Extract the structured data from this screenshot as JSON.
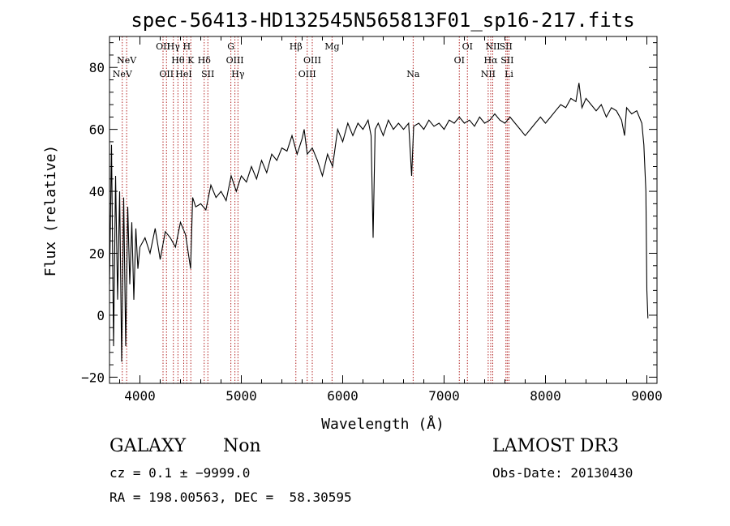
{
  "chart_data": {
    "type": "line",
    "title": "spec-56413-HD132545N565813F01_sp16-217.fits",
    "xlabel": "Wavelength (Å)",
    "ylabel": "Flux (relative)",
    "xlim": [
      3700,
      9100
    ],
    "ylim": [
      -22,
      90
    ],
    "x_ticks": [
      4000,
      5000,
      6000,
      7000,
      8000,
      9000
    ],
    "y_ticks": [
      -20,
      0,
      20,
      40,
      60,
      80
    ],
    "x_tick_labels": [
      "4000",
      "5000",
      "6000",
      "7000",
      "8000",
      "9000"
    ],
    "y_tick_labels": [
      "−20",
      "0",
      "20",
      "40",
      "60",
      "80"
    ],
    "grid": false,
    "series": [
      {
        "color": "#000000",
        "x": [
          3700,
          3720,
          3740,
          3760,
          3780,
          3800,
          3820,
          3840,
          3860,
          3880,
          3900,
          3920,
          3940,
          3960,
          3980,
          4000,
          4050,
          4100,
          4150,
          4200,
          4250,
          4300,
          4350,
          4400,
          4450,
          4500,
          4520,
          4550,
          4600,
          4650,
          4700,
          4750,
          4800,
          4850,
          4900,
          4950,
          5000,
          5050,
          5100,
          5150,
          5200,
          5250,
          5300,
          5350,
          5400,
          5450,
          5500,
          5550,
          5600,
          5620,
          5650,
          5700,
          5750,
          5800,
          5850,
          5900,
          5950,
          6000,
          6050,
          6100,
          6150,
          6200,
          6250,
          6280,
          6300,
          6320,
          6350,
          6400,
          6450,
          6500,
          6550,
          6600,
          6650,
          6680,
          6700,
          6750,
          6800,
          6850,
          6900,
          6950,
          7000,
          7050,
          7100,
          7150,
          7200,
          7250,
          7300,
          7350,
          7400,
          7450,
          7500,
          7550,
          7600,
          7650,
          7700,
          7750,
          7800,
          7850,
          7900,
          7950,
          8000,
          8050,
          8100,
          8150,
          8200,
          8250,
          8300,
          8330,
          8360,
          8400,
          8450,
          8500,
          8550,
          8600,
          8650,
          8700,
          8750,
          8780,
          8800,
          8850,
          8900,
          8950,
          8970,
          8990,
          9000,
          9010
        ],
        "y": [
          10,
          55,
          -10,
          45,
          5,
          40,
          -15,
          38,
          -10,
          35,
          10,
          30,
          5,
          28,
          15,
          22,
          25,
          20,
          28,
          18,
          27,
          25,
          22,
          30,
          26,
          15,
          38,
          35,
          36,
          34,
          42,
          38,
          40,
          37,
          45,
          40,
          45,
          43,
          48,
          44,
          50,
          46,
          52,
          50,
          54,
          53,
          58,
          52,
          57,
          60,
          52,
          54,
          50,
          45,
          52,
          48,
          60,
          56,
          62,
          58,
          62,
          60,
          63,
          58,
          25,
          60,
          62,
          58,
          63,
          60,
          62,
          60,
          62,
          45,
          61,
          62,
          60,
          63,
          61,
          62,
          60,
          63,
          62,
          64,
          62,
          63,
          61,
          64,
          62,
          63,
          65,
          63,
          62,
          64,
          62,
          60,
          58,
          60,
          62,
          64,
          62,
          64,
          66,
          68,
          67,
          70,
          69,
          75,
          67,
          70,
          68,
          66,
          68,
          64,
          67,
          66,
          63,
          58,
          67,
          65,
          66,
          62,
          55,
          40,
          8,
          -1
        ]
      }
    ],
    "line_markers": [
      {
        "x": 3826,
        "label": "NeV",
        "row": 3
      },
      {
        "x": 3869,
        "label": "NeV",
        "row": 2
      },
      {
        "x": 4228,
        "label": "OII",
        "row": 1
      },
      {
        "x": 4262,
        "label": "OII",
        "row": 3
      },
      {
        "x": 4330,
        "label": "Hγ",
        "row": 1
      },
      {
        "x": 4375,
        "label": "Hθ",
        "row": 2
      },
      {
        "x": 4432,
        "label": "HeI",
        "row": 3
      },
      {
        "x": 4462,
        "label": "H",
        "row": 1
      },
      {
        "x": 4502,
        "label": "K",
        "row": 2
      },
      {
        "x": 4634,
        "label": "Hδ",
        "row": 2
      },
      {
        "x": 4670,
        "label": "SII",
        "row": 3
      },
      {
        "x": 4897,
        "label": "G",
        "row": 1
      },
      {
        "x": 4937,
        "label": "OIII",
        "row": 2
      },
      {
        "x": 4967,
        "label": "Hγ",
        "row": 3
      },
      {
        "x": 5538,
        "label": "Hβ",
        "row": 1
      },
      {
        "x": 5650,
        "label": "OIII",
        "row": 3
      },
      {
        "x": 5700,
        "label": "OIII",
        "row": 2
      },
      {
        "x": 5895,
        "label": "Mg",
        "row": 1
      },
      {
        "x": 6695,
        "label": "Na",
        "row": 3
      },
      {
        "x": 7150,
        "label": "OI",
        "row": 2
      },
      {
        "x": 7230,
        "label": "OI",
        "row": 1
      },
      {
        "x": 7435,
        "label": "NII",
        "row": 3
      },
      {
        "x": 7460,
        "label": "Hα",
        "row": 2
      },
      {
        "x": 7480,
        "label": "NII",
        "row": 1
      },
      {
        "x": 7610,
        "label": "SII",
        "row": 1
      },
      {
        "x": 7623,
        "label": "SII",
        "row": 2
      },
      {
        "x": 7640,
        "label": "Li",
        "row": 3
      }
    ],
    "marker_color": "#b22222"
  },
  "info": {
    "object_class": "GALAXY",
    "subclass": "Non",
    "cz_line": "cz = 0.1 ± −9999.0",
    "coords_line": "RA = 198.00563, DEC =  58.30595",
    "survey": "LAMOST DR3",
    "obs_date": "Obs-Date: 20130430"
  }
}
